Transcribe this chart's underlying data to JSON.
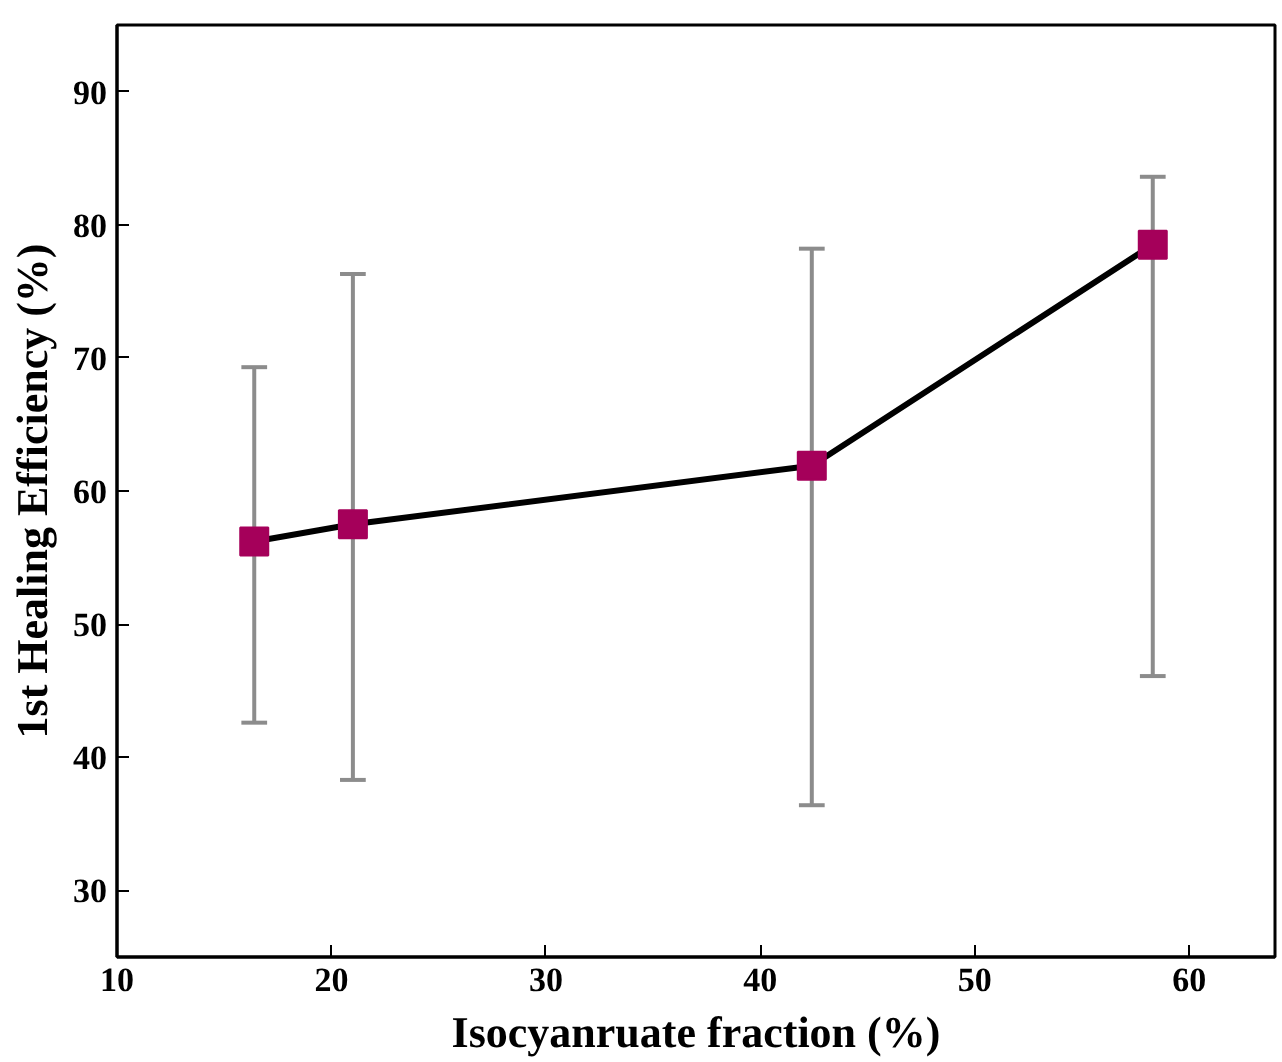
{
  "chart_data": {
    "type": "line",
    "xlabel": "Isocyanruate fraction (%)",
    "ylabel": "1st Healing Efficiency (%)",
    "x": [
      16.4,
      21.0,
      42.4,
      58.3
    ],
    "series": [
      {
        "color": "#000000",
        "values": [
          56.2,
          57.5,
          61.9,
          78.5
        ],
        "errors": [
          [
            42.6,
            69.3
          ],
          [
            38.3,
            76.3
          ],
          [
            36.4,
            78.2
          ],
          [
            46.1,
            83.6
          ]
        ]
      }
    ],
    "marker": "square",
    "line_style": "solid",
    "grid": false,
    "xlim": [
      10,
      64
    ],
    "xticks": [
      10,
      20,
      30,
      40,
      50,
      60
    ],
    "ylim": [
      25,
      95
    ],
    "yticks": [
      30,
      40,
      50,
      60,
      70,
      80,
      90
    ]
  }
}
